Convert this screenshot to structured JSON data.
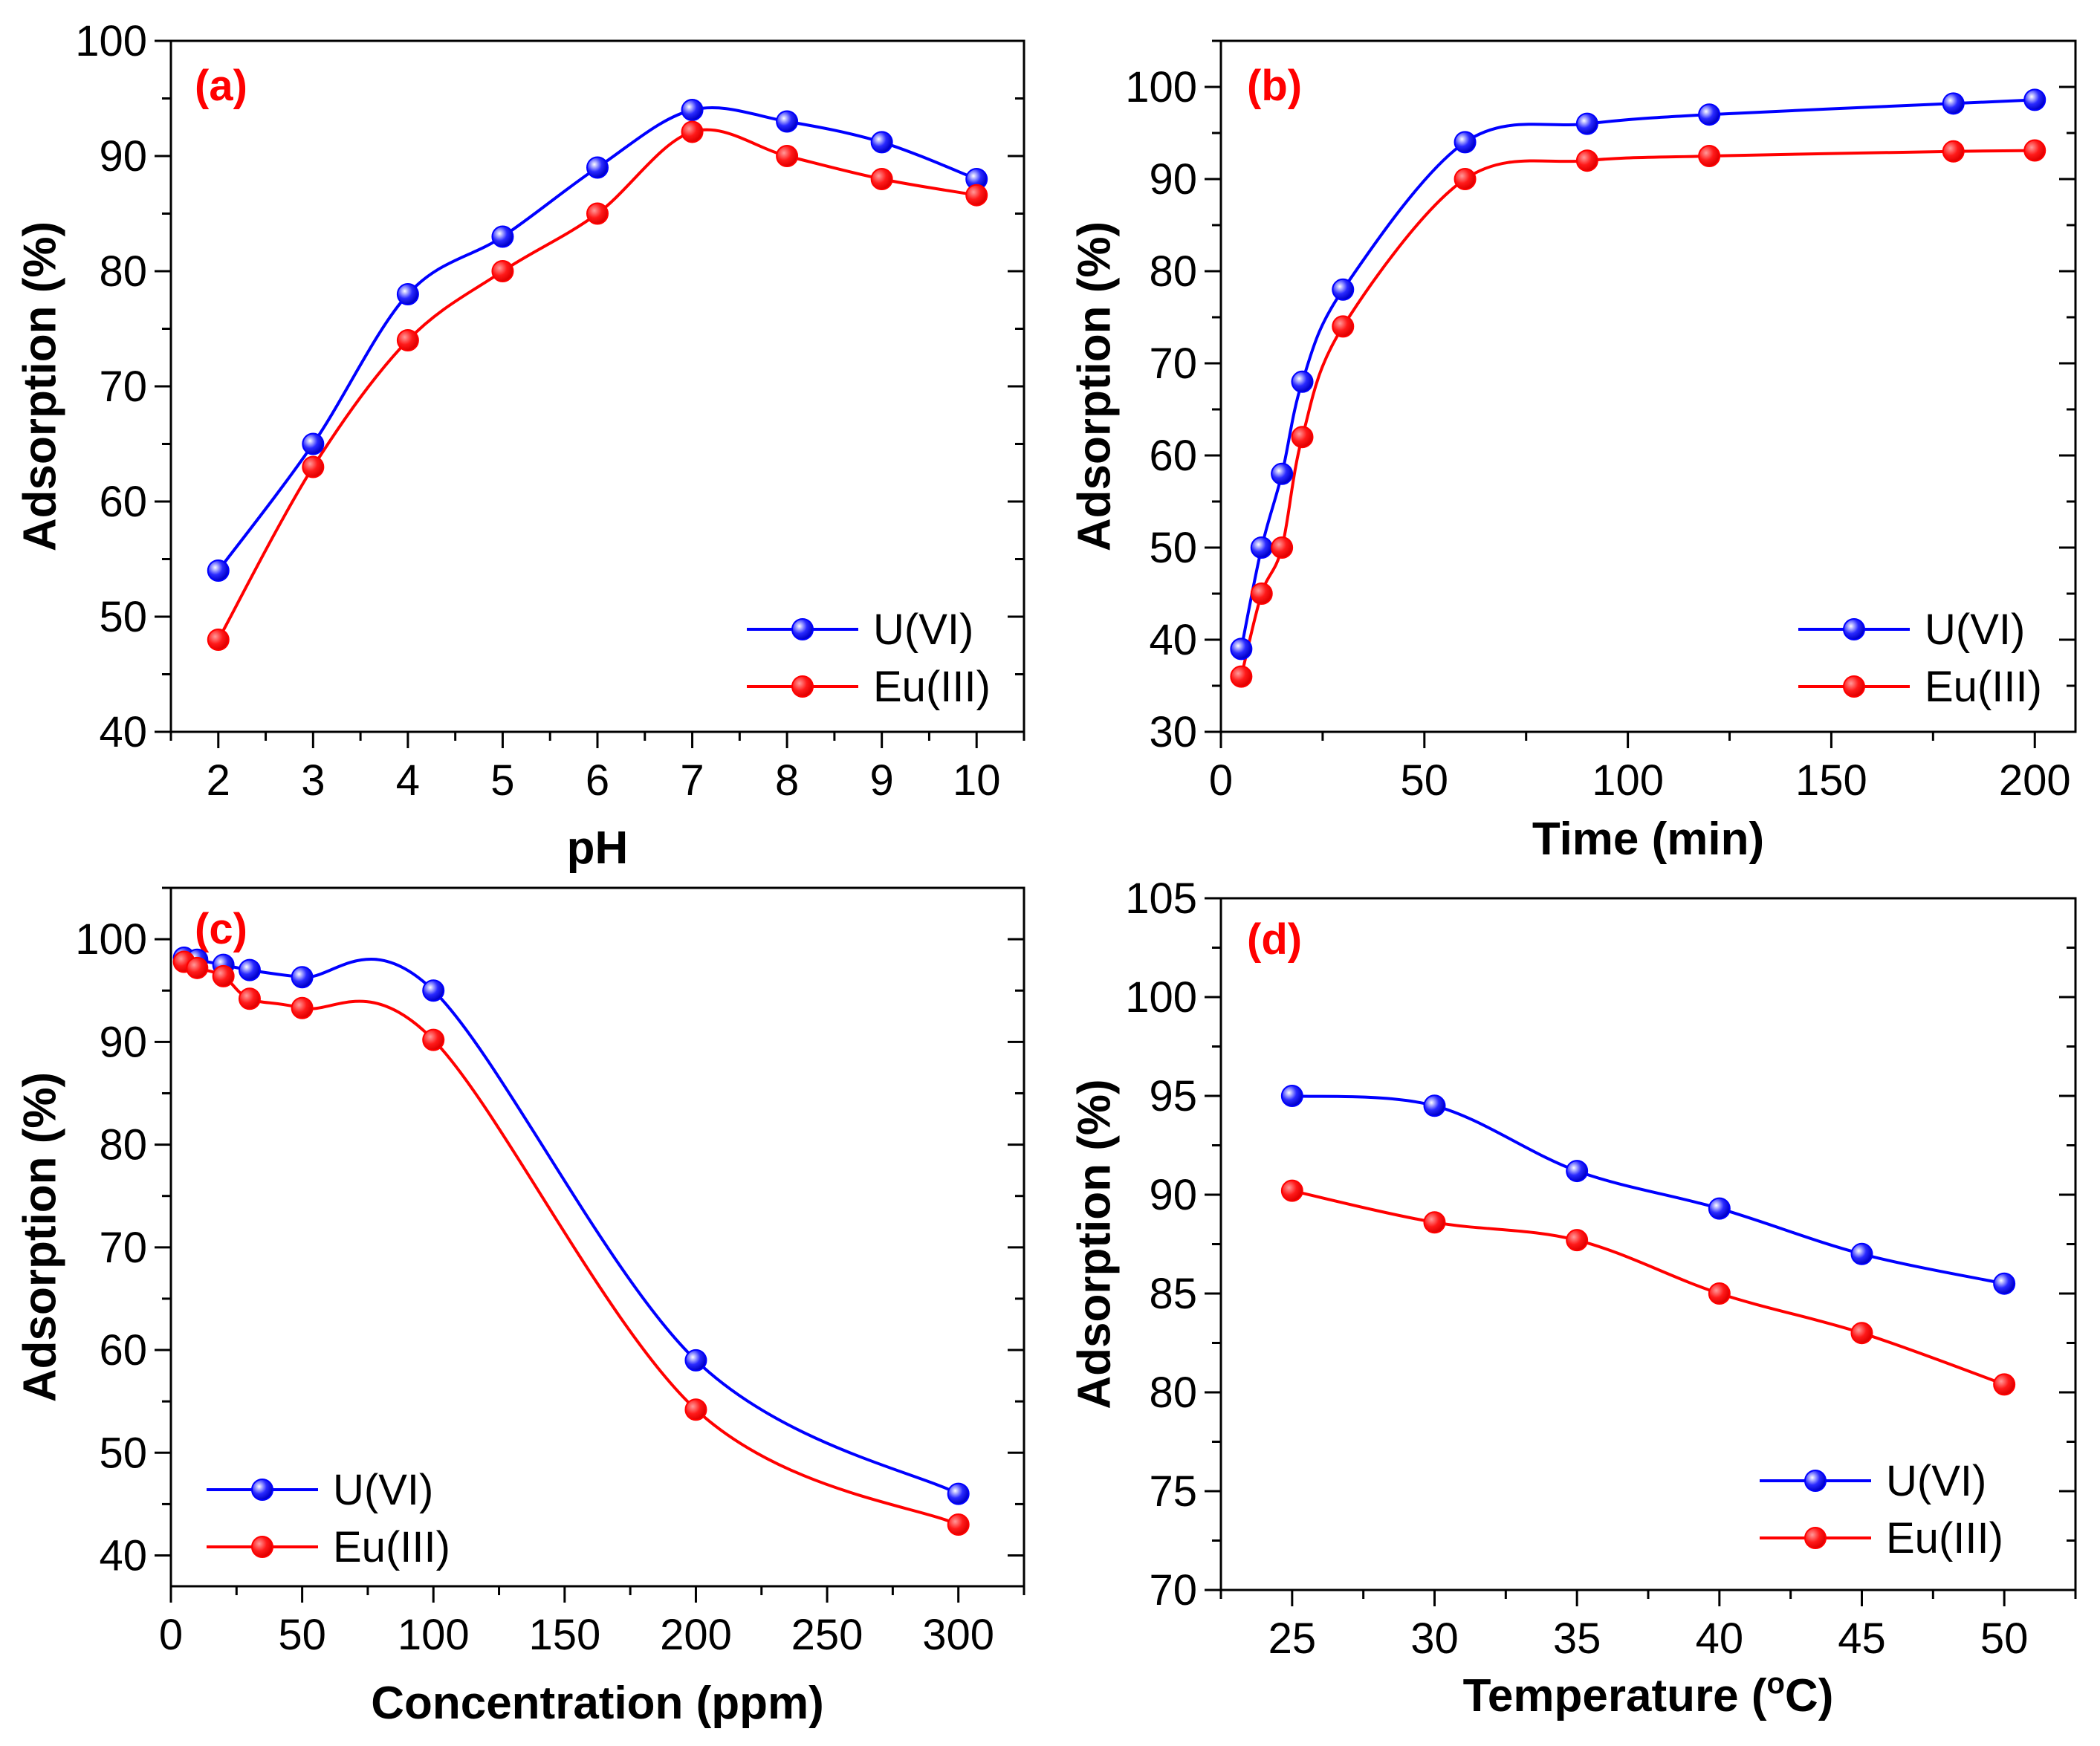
{
  "chart_data": [
    {
      "type": "line",
      "panel_label": "(a)",
      "xlabel": "pH",
      "ylabel": "Adsorption (%)",
      "xlim": [
        1.5,
        10.5
      ],
      "ylim": [
        40,
        100
      ],
      "xticks": [
        2,
        3,
        4,
        5,
        6,
        7,
        8,
        9,
        10
      ],
      "yticks": [
        40,
        50,
        60,
        70,
        80,
        90,
        100
      ],
      "legend_position": "bottom-right",
      "series": [
        {
          "name": "U(VI)",
          "color": "#0000ff",
          "x": [
            2,
            3,
            4,
            5,
            6,
            7,
            8,
            9,
            10
          ],
          "y": [
            54,
            65,
            78,
            83,
            89,
            94,
            93,
            91.2,
            88
          ]
        },
        {
          "name": "Eu(III)",
          "color": "#ff0000",
          "x": [
            2,
            3,
            4,
            5,
            6,
            7,
            8,
            9,
            10
          ],
          "y": [
            48,
            63,
            74,
            80,
            85,
            92.1,
            90,
            88,
            86.6
          ]
        }
      ]
    },
    {
      "type": "line",
      "panel_label": "(b)",
      "xlabel": "Time (min)",
      "ylabel": "Adsorption (%)",
      "xlim": [
        0,
        210
      ],
      "ylim": [
        30,
        105
      ],
      "xticks": [
        0,
        50,
        100,
        150,
        200
      ],
      "yticks": [
        30,
        40,
        50,
        60,
        70,
        80,
        90,
        100
      ],
      "legend_position": "bottom-right",
      "series": [
        {
          "name": "U(VI)",
          "color": "#0000ff",
          "x": [
            5,
            10,
            15,
            20,
            30,
            60,
            90,
            120,
            180,
            200
          ],
          "y": [
            39,
            50,
            58,
            68,
            78,
            94,
            96,
            97,
            98.2,
            98.6
          ]
        },
        {
          "name": "Eu(III)",
          "color": "#ff0000",
          "x": [
            5,
            10,
            15,
            20,
            30,
            60,
            90,
            120,
            180,
            200
          ],
          "y": [
            36,
            45,
            50,
            62,
            74,
            90,
            92,
            92.5,
            93,
            93.1
          ]
        }
      ]
    },
    {
      "type": "line",
      "panel_label": "(c)",
      "xlabel": "Concentration (ppm)",
      "ylabel": "Adsorption (%)",
      "xlim": [
        0,
        325
      ],
      "ylim": [
        37,
        105
      ],
      "xticks": [
        0,
        50,
        100,
        150,
        200,
        250,
        300
      ],
      "yticks": [
        40,
        50,
        60,
        70,
        80,
        90,
        100
      ],
      "legend_position": "bottom-left",
      "series": [
        {
          "name": "U(VI)",
          "color": "#0000ff",
          "x": [
            5,
            10,
            20,
            30,
            50,
            100,
            200,
            300
          ],
          "y": [
            98.2,
            98,
            97.5,
            97,
            96.3,
            95,
            59,
            46
          ]
        },
        {
          "name": "Eu(III)",
          "color": "#ff0000",
          "x": [
            5,
            10,
            20,
            30,
            50,
            100,
            200,
            300
          ],
          "y": [
            97.8,
            97.2,
            96.4,
            94.2,
            93.3,
            90.2,
            54.2,
            43
          ]
        }
      ]
    },
    {
      "type": "line",
      "panel_label": "(d)",
      "xlabel": "Temperature (",
      "xlabel_superscript": "o",
      "xlabel_end": "C)",
      "ylabel": "Adsorption (%)",
      "xlim": [
        22.5,
        52.5
      ],
      "ylim": [
        70,
        105
      ],
      "xticks": [
        25,
        30,
        35,
        40,
        45,
        50
      ],
      "yticks": [
        70,
        75,
        80,
        85,
        90,
        95,
        100,
        105
      ],
      "legend_position": "bottom-right",
      "series": [
        {
          "name": "U(VI)",
          "color": "#0000ff",
          "x": [
            25,
            30,
            35,
            40,
            45,
            50
          ],
          "y": [
            95,
            94.5,
            91.2,
            89.3,
            87,
            85.5
          ]
        },
        {
          "name": "Eu(III)",
          "color": "#ff0000",
          "x": [
            25,
            30,
            35,
            40,
            45,
            50
          ],
          "y": [
            90.2,
            88.6,
            87.7,
            85,
            83,
            80.4
          ]
        }
      ]
    }
  ],
  "colors": {
    "panel_label": "#ff0000",
    "axis": "#000000"
  }
}
